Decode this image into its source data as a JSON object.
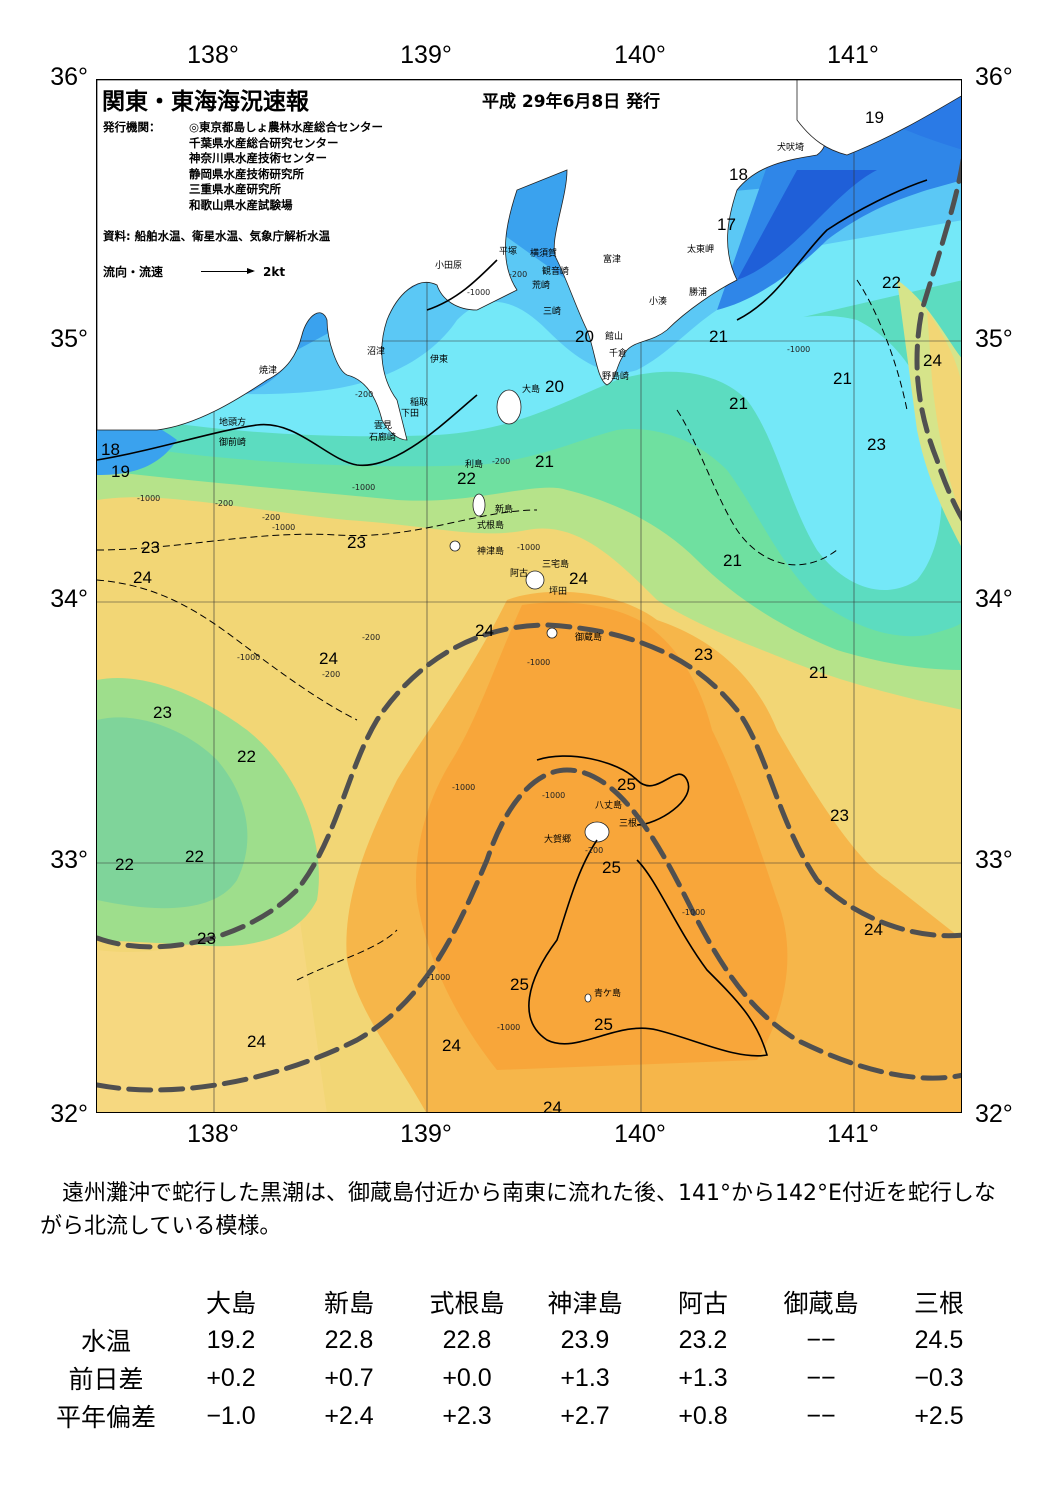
{
  "map": {
    "title": "関東・東海海況速報",
    "date": "平成 29年6月8日 発行",
    "issuer_label": "発行機関：",
    "issuers": [
      "◎東京都島しょ農林水産総合センター",
      "千葉県水産総合研究センター",
      "神奈川県水産技術センター",
      "静岡県水産技術研究所",
      "三重県水産研究所",
      "和歌山県水産試験場"
    ],
    "source": "資料: 船舶水温、衛星水温、気象庁解析水温",
    "flow_label": "流向・流速",
    "flow_scale": "2kt",
    "lon_ticks": [
      "138°",
      "139°",
      "140°",
      "141°"
    ],
    "lat_ticks": [
      "36°",
      "35°",
      "34°",
      "33°",
      "32°"
    ],
    "isotherm_labels": [
      "19",
      "18",
      "17",
      "22",
      "24",
      "21",
      "21",
      "23",
      "20",
      "20",
      "21",
      "21",
      "22",
      "18",
      "19",
      "23",
      "23",
      "24",
      "21",
      "24",
      "24",
      "23",
      "21",
      "24",
      "23",
      "22",
      "25",
      "23",
      "25",
      "22",
      "22",
      "23",
      "24",
      "25",
      "25",
      "24",
      "24",
      "24"
    ],
    "depth_labels": [
      "-200",
      "-1000",
      "-200",
      "-1000",
      "-200",
      "-200",
      "-1000",
      "-200",
      "-1000",
      "-1000",
      "-200",
      "-1000",
      "-200",
      "-1000",
      "-1000",
      "-1000",
      "-1000",
      "-1000",
      "-1000",
      "-1000",
      "-200"
    ],
    "places": [
      "犬吠埼",
      "太東岬",
      "勝浦",
      "小湊",
      "館山",
      "千倉",
      "野島崎",
      "富津",
      "観音崎",
      "横須賀",
      "平塚",
      "荒崎",
      "三崎",
      "小田原",
      "沼津",
      "伊東",
      "稲取",
      "下田",
      "雲見",
      "石廊崎",
      "焼津",
      "地頭方",
      "御前崎",
      "大島",
      "利島",
      "新島",
      "式根島",
      "神津島",
      "三宅島",
      "阿古",
      "坪田",
      "御蔵島",
      "八丈島",
      "三根",
      "大賀郷",
      "青ケ島"
    ],
    "colors": {
      "t17": "#1f5fd8",
      "t18": "#2f86e8",
      "t19": "#3aa2ee",
      "t20": "#5bc8f5",
      "t21": "#74e8f8",
      "t22": "#66e0a6",
      "t23": "#8ee088",
      "t24": "#f2d675",
      "t24b": "#f6c25a",
      "t25": "#f8a83a",
      "kuroshio": "#505050",
      "land": "#ffffff"
    }
  },
  "summary": "遠州灘沖で蛇行した黒潮は、御蔵島付近から南東に流れた後、141°から142°E付近を蛇行しながら北流している模様。",
  "table": {
    "columns": [
      "大島",
      "新島",
      "式根島",
      "神津島",
      "阿古",
      "御蔵島",
      "三根"
    ],
    "rows": [
      {
        "label": "水温",
        "values": [
          "19.2",
          "22.8",
          "22.8",
          "23.9",
          "23.2",
          "−−",
          "24.5"
        ]
      },
      {
        "label": "前日差",
        "values": [
          "+0.2",
          "+0.7",
          "+0.0",
          "+1.3",
          "+1.3",
          "−−",
          "−0.3"
        ]
      },
      {
        "label": "平年偏差",
        "values": [
          "−1.0",
          "+2.4",
          "+2.3",
          "+2.7",
          "+0.8",
          "−−",
          "+2.5"
        ]
      }
    ]
  }
}
